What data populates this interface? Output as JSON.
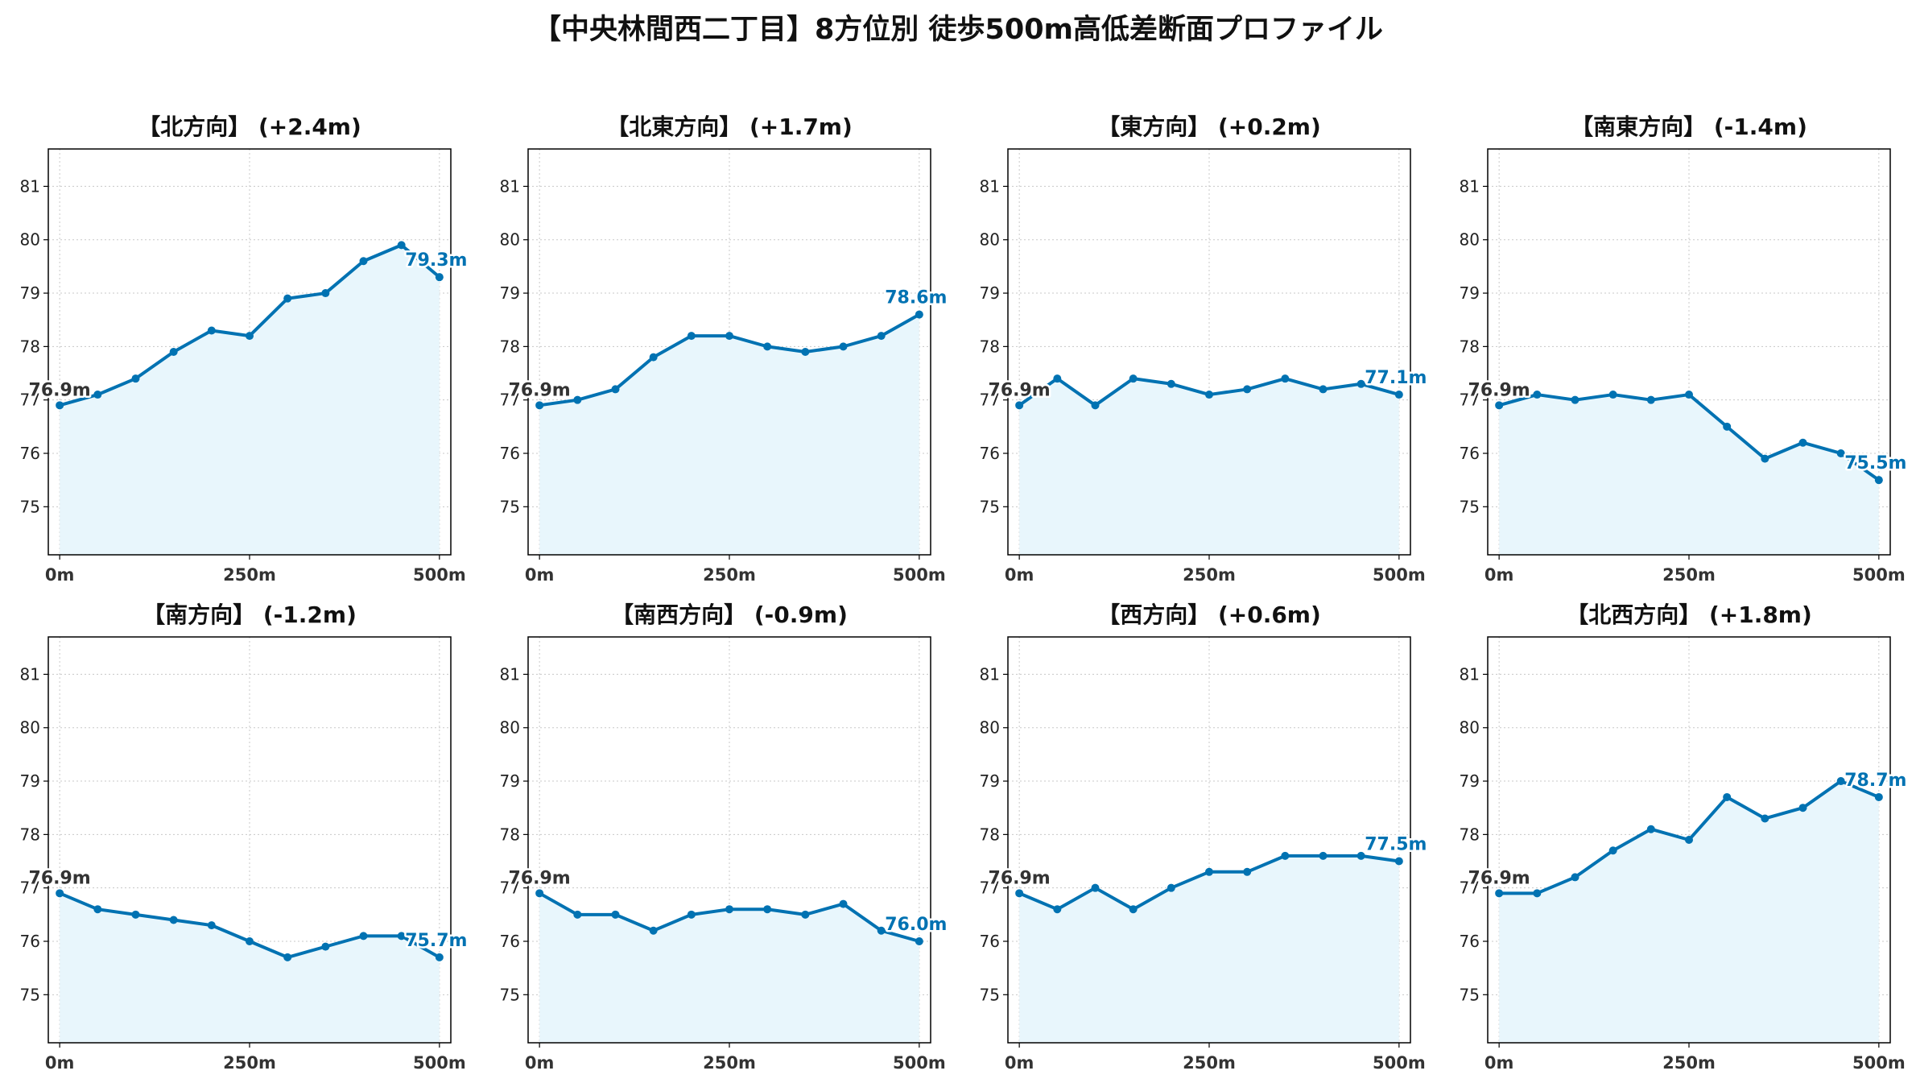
{
  "title": "【中央林間西二丁目】8方位別 徒歩500m高低差断面プロファイル",
  "colors": {
    "line": "#0072B2",
    "fill": "#e8f6fc",
    "grid": "#c8c8c8",
    "start_label": "#333333",
    "end_label": "#0072B2"
  },
  "chart_data": [
    {
      "type": "area",
      "title": "【北方向】 (+2.4m)",
      "x": [
        0,
        50,
        100,
        150,
        200,
        250,
        300,
        350,
        400,
        450,
        500
      ],
      "values": [
        76.9,
        77.1,
        77.4,
        77.9,
        78.3,
        78.2,
        78.9,
        79.0,
        79.6,
        79.9,
        79.3
      ],
      "xticks": [
        "0m",
        "250m",
        "500m"
      ],
      "yticks": [
        75,
        76,
        77,
        78,
        79,
        80,
        81
      ],
      "ylim": [
        74.1,
        81.7
      ],
      "xlim": [
        -15,
        515
      ],
      "grid": true,
      "start_label": "76.9m",
      "end_label": "79.3m"
    },
    {
      "type": "area",
      "title": "【北東方向】 (+1.7m)",
      "x": [
        0,
        50,
        100,
        150,
        200,
        250,
        300,
        350,
        400,
        450,
        500
      ],
      "values": [
        76.9,
        77.0,
        77.2,
        77.8,
        78.2,
        78.2,
        78.0,
        77.9,
        78.0,
        78.2,
        78.6
      ],
      "xticks": [
        "0m",
        "250m",
        "500m"
      ],
      "yticks": [
        75,
        76,
        77,
        78,
        79,
        80,
        81
      ],
      "ylim": [
        74.1,
        81.7
      ],
      "xlim": [
        -15,
        515
      ],
      "grid": true,
      "start_label": "76.9m",
      "end_label": "78.6m"
    },
    {
      "type": "area",
      "title": "【東方向】 (+0.2m)",
      "x": [
        0,
        50,
        100,
        150,
        200,
        250,
        300,
        350,
        400,
        450,
        500
      ],
      "values": [
        76.9,
        77.4,
        76.9,
        77.4,
        77.3,
        77.1,
        77.2,
        77.4,
        77.2,
        77.3,
        77.1
      ],
      "xticks": [
        "0m",
        "250m",
        "500m"
      ],
      "yticks": [
        75,
        76,
        77,
        78,
        79,
        80,
        81
      ],
      "ylim": [
        74.1,
        81.7
      ],
      "xlim": [
        -15,
        515
      ],
      "grid": true,
      "start_label": "76.9m",
      "end_label": "77.1m"
    },
    {
      "type": "area",
      "title": "【南東方向】 (-1.4m)",
      "x": [
        0,
        50,
        100,
        150,
        200,
        250,
        300,
        350,
        400,
        450,
        500
      ],
      "values": [
        76.9,
        77.1,
        77.0,
        77.1,
        77.0,
        77.1,
        76.5,
        75.9,
        76.2,
        76.0,
        75.5
      ],
      "xticks": [
        "0m",
        "250m",
        "500m"
      ],
      "yticks": [
        75,
        76,
        77,
        78,
        79,
        80,
        81
      ],
      "ylim": [
        74.1,
        81.7
      ],
      "xlim": [
        -15,
        515
      ],
      "grid": true,
      "start_label": "76.9m",
      "end_label": "75.5m"
    },
    {
      "type": "area",
      "title": "【南方向】 (-1.2m)",
      "x": [
        0,
        50,
        100,
        150,
        200,
        250,
        300,
        350,
        400,
        450,
        500
      ],
      "values": [
        76.9,
        76.6,
        76.5,
        76.4,
        76.3,
        76.0,
        75.7,
        75.9,
        76.1,
        76.1,
        75.7
      ],
      "xticks": [
        "0m",
        "250m",
        "500m"
      ],
      "yticks": [
        75,
        76,
        77,
        78,
        79,
        80,
        81
      ],
      "ylim": [
        74.1,
        81.7
      ],
      "xlim": [
        -15,
        515
      ],
      "grid": true,
      "start_label": "76.9m",
      "end_label": "75.7m"
    },
    {
      "type": "area",
      "title": "【南西方向】 (-0.9m)",
      "x": [
        0,
        50,
        100,
        150,
        200,
        250,
        300,
        350,
        400,
        450,
        500
      ],
      "values": [
        76.9,
        76.5,
        76.5,
        76.2,
        76.5,
        76.6,
        76.6,
        76.5,
        76.7,
        76.2,
        76.0
      ],
      "xticks": [
        "0m",
        "250m",
        "500m"
      ],
      "yticks": [
        75,
        76,
        77,
        78,
        79,
        80,
        81
      ],
      "ylim": [
        74.1,
        81.7
      ],
      "xlim": [
        -15,
        515
      ],
      "grid": true,
      "start_label": "76.9m",
      "end_label": "76.0m"
    },
    {
      "type": "area",
      "title": "【西方向】 (+0.6m)",
      "x": [
        0,
        50,
        100,
        150,
        200,
        250,
        300,
        350,
        400,
        450,
        500
      ],
      "values": [
        76.9,
        76.6,
        77.0,
        76.6,
        77.0,
        77.3,
        77.3,
        77.6,
        77.6,
        77.6,
        77.5
      ],
      "xticks": [
        "0m",
        "250m",
        "500m"
      ],
      "yticks": [
        75,
        76,
        77,
        78,
        79,
        80,
        81
      ],
      "ylim": [
        74.1,
        81.7
      ],
      "xlim": [
        -15,
        515
      ],
      "grid": true,
      "start_label": "76.9m",
      "end_label": "77.5m"
    },
    {
      "type": "area",
      "title": "【北西方向】 (+1.8m)",
      "x": [
        0,
        50,
        100,
        150,
        200,
        250,
        300,
        350,
        400,
        450,
        500
      ],
      "values": [
        76.9,
        76.9,
        77.2,
        77.7,
        78.1,
        77.9,
        78.7,
        78.3,
        78.5,
        79.0,
        78.7
      ],
      "xticks": [
        "0m",
        "250m",
        "500m"
      ],
      "yticks": [
        75,
        76,
        77,
        78,
        79,
        80,
        81
      ],
      "ylim": [
        74.1,
        81.7
      ],
      "xlim": [
        -15,
        515
      ],
      "grid": true,
      "start_label": "76.9m",
      "end_label": "78.7m"
    }
  ]
}
